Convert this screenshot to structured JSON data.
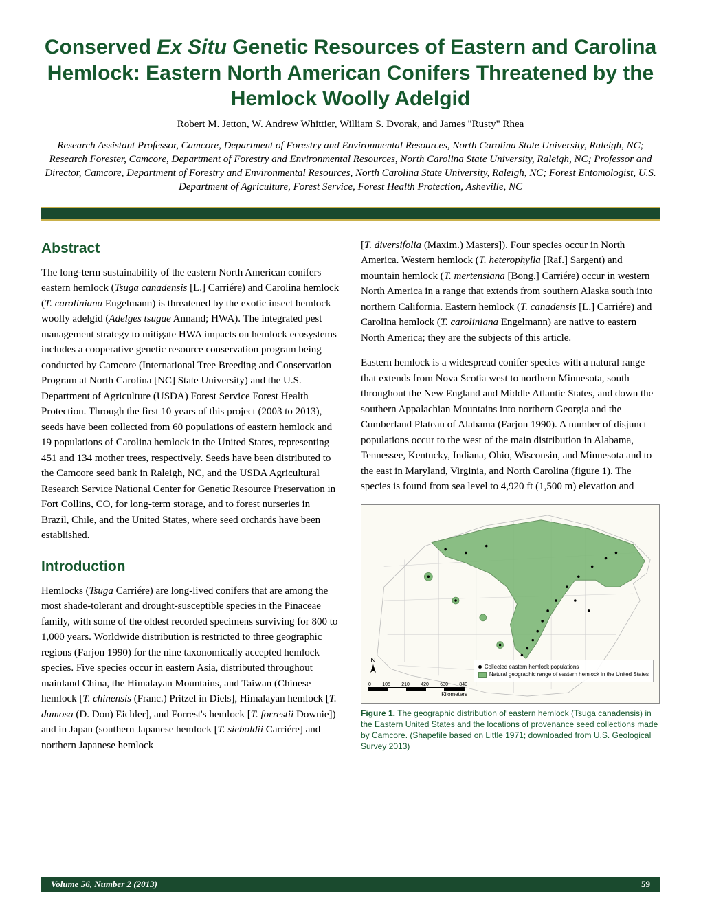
{
  "title_html": "Conserved <span class=\"italic\">Ex Situ</span> Genetic Resources of Eastern and Carolina Hemlock: Eastern North American Conifers Threatened by the Hemlock Woolly Adelgid",
  "authors": "Robert M. Jetton, W. Andrew Whittier, William S. Dvorak, and James \"Rusty\" Rhea",
  "affiliations": "Research Assistant Professor, Camcore, Department of Forestry and Environmental Resources, North Carolina State University, Raleigh, NC; Research Forester, Camcore, Department of Forestry and Environmental Resources, North Carolina State University, Raleigh, NC; Professor and Director, Camcore, Department of Forestry and Environmental Resources, North Carolina State University, Raleigh, NC; Forest Entomologist, U.S. Department of Agriculture, Forest Service, Forest Health Protection, Asheville, NC",
  "sections": {
    "abstract_heading": "Abstract",
    "abstract_html": "The long-term sustainability of the eastern North American conifers eastern hemlock (<span class=\"ital\">Tsuga canadensis</span> [L.] Carriére) and Carolina hemlock (<span class=\"ital\">T. caroliniana</span> Engelmann) is threatened by the exotic insect hemlock woolly adelgid (<span class=\"ital\">Adelges tsugae</span> Annand; HWA). The integrated pest management strategy to mitigate HWA impacts on hemlock ecosystems includes a cooperative genetic resource conservation program being conducted by Camcore (International Tree Breeding and Conservation Program at North Carolina [NC] State University) and the U.S. Department of Agriculture (USDA) Forest Service Forest Health Protection. Through the first 10 years of this project (2003 to 2013), seeds have been collected from 60 populations of eastern hemlock and 19 populations of Carolina hemlock in the United States, representing 451 and 134 mother trees, respectively. Seeds have been distributed to the Camcore seed bank in Raleigh, NC, and the USDA Agricultural Research Service National Center for Genetic Resource Preservation in Fort Collins, CO, for long-term storage, and to forest nurseries in Brazil, Chile, and the United States, where seed orchards have been established.",
    "intro_heading": "Introduction",
    "intro_col1_html": "Hemlocks (<span class=\"ital\">Tsuga</span> Carriére) are long-lived conifers that are among the most shade-tolerant and drought-susceptible species in the Pinaceae family, with some of the oldest recorded specimens surviving for 800 to 1,000 years. Worldwide distribution is restricted to three geographic regions (Farjon 1990) for the nine taxonomically accepted hemlock species. Five species occur in eastern Asia, distributed throughout mainland China, the Himalayan Mountains, and Taiwan (Chinese hemlock [<span class=\"ital\">T. chinensis</span> (Franc.) Pritzel in Diels], Himalayan hemlock [<span class=\"ital\">T. dumosa</span> (D. Don) Eichler], and Forrest's hemlock [<span class=\"ital\">T. forrestii</span> Downie]) and in Japan (southern Japanese hemlock [<span class=\"ital\">T. sieboldii</span> Carriére] and northern Japanese hemlock",
    "intro_col2_p1_html": "[<span class=\"ital\">T. diversifolia</span> (Maxim.) Masters]). Four species occur in North America. Western hemlock (<span class=\"ital\">T. heterophylla</span> [Raf.] Sargent) and mountain hemlock (<span class=\"ital\">T. mertensiana</span> [Bong.] Carriére) occur in western North America in a range that extends from southern Alaska south into northern California. Eastern hemlock (<span class=\"ital\">T. canadensis</span> [L.] Carriére) and Carolina hemlock (<span class=\"ital\">T. caroliniana</span> Engelmann) are native to eastern North America; they are the subjects of this article.",
    "intro_col2_p2_html": "Eastern hemlock is a widespread conifer species with a natural range that extends from Nova Scotia west to northern Minnesota, south throughout the New England and Middle Atlantic States, and down the southern Appalachian Mountains into northern Georgia and the Cumberland Plateau of Alabama (Farjon 1990). A number of disjunct populations occur to the west of the main distribution in Alabama, Tennessee, Kentucky, Indiana, Ohio, Wisconsin, and Minnesota and to the east in Maryland, Virginia, and North Carolina (figure 1). The species is found from sea level to 4,920 ft (1,500 m) elevation and"
  },
  "figure": {
    "label": "Figure 1.",
    "caption": "The geographic distribution of eastern hemlock (Tsuga canadensis) in the Eastern United States and the locations of provenance seed collections made by Camcore. (Shapefile based on Little 1971; downloaded from U.S. Geological Survey 2013)",
    "legend_item1": "Collected eastern hemlock populations",
    "legend_item2": "Natural geographic range of eastern hemlock in the United States",
    "scale_labels": [
      "0",
      "105",
      "210",
      "420",
      "630",
      "840"
    ],
    "scale_unit": "Kilometers",
    "north_label": "N",
    "colors": {
      "range_fill": "#7eb878",
      "range_stroke": "#5a8a55",
      "land_fill": "#fbfaf3",
      "border_stroke": "#bbbbbb",
      "water": "#fbfaf3"
    }
  },
  "footer": {
    "volume": "Volume 56, Number 2 (2013)",
    "page": "59"
  },
  "style": {
    "accent_color": "#16582d",
    "divider_bg": "#1a4a2e",
    "divider_border": "#c9b04a",
    "title_fontsize": 30,
    "heading_fontsize": 21,
    "body_fontsize": 15,
    "caption_fontsize": 12
  }
}
